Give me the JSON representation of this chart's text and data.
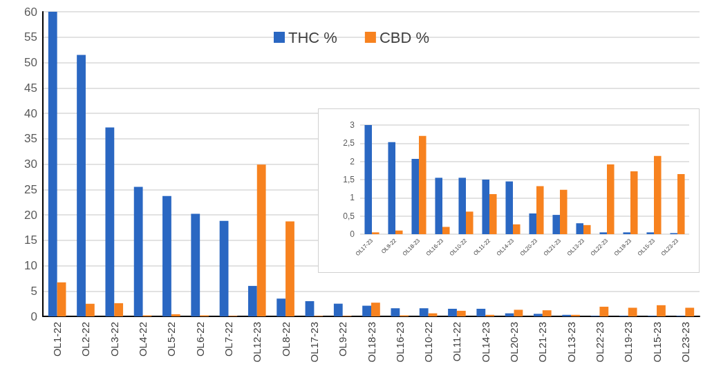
{
  "chart_data": [
    {
      "type": "bar",
      "categories": [
        "OL1-22",
        "OL2-22",
        "OL3-22",
        "OL4-22",
        "OL5-22",
        "OL6-22",
        "OL7-22",
        "OL12-23",
        "OL8-22",
        "OL17-23",
        "OL9-22",
        "OL18-23",
        "OL16-23",
        "OL10-22",
        "OL11-22",
        "OL14-23",
        "OL20-23",
        "OL21-23",
        "OL13-23",
        "OL22-23",
        "OL19-23",
        "OL15-23",
        "OL23-23"
      ],
      "series": [
        {
          "name": "THC %",
          "color": "#2a67c2",
          "values": [
            60,
            51.5,
            37.2,
            25.5,
            23.7,
            20.2,
            18.8,
            6.0,
            3.5,
            3.0,
            2.5,
            2.1,
            1.6,
            1.6,
            1.5,
            1.5,
            0.6,
            0.5,
            0.3,
            0.1,
            0.1,
            0.1,
            0.1
          ]
        },
        {
          "name": "CBD %",
          "color": "#f7821f",
          "values": [
            6.7,
            2.5,
            2.6,
            0.2,
            0.4,
            0.2,
            0.1,
            29.9,
            18.7,
            0.1,
            0.1,
            2.7,
            0.2,
            0.6,
            1.1,
            0.3,
            1.3,
            1.2,
            0.3,
            1.9,
            1.7,
            2.2,
            1.7
          ]
        }
      ],
      "ylim": [
        0,
        60
      ],
      "yticks": [
        0,
        5,
        10,
        15,
        20,
        25,
        30,
        35,
        40,
        45,
        50,
        55,
        60
      ],
      "grid": "y",
      "legend": "top"
    },
    {
      "type": "bar",
      "categories": [
        "OL17-23",
        "OL9-22",
        "OL18-23",
        "OL16-23",
        "OL10-22",
        "OL11-22",
        "OL14-23",
        "OL20-23",
        "OL21-23",
        "OL13-23",
        "OL22-23",
        "OL19-23",
        "OL15-23",
        "OL23-23"
      ],
      "series": [
        {
          "color": "#2a67c2",
          "values": [
            3.0,
            2.53,
            2.07,
            1.55,
            1.55,
            1.5,
            1.45,
            0.57,
            0.53,
            0.3,
            0.05,
            0.05,
            0.05,
            0.03
          ]
        },
        {
          "color": "#f7821f",
          "values": [
            0.05,
            0.1,
            2.7,
            0.2,
            0.62,
            1.1,
            0.27,
            1.32,
            1.22,
            0.25,
            1.92,
            1.73,
            2.15,
            1.65
          ]
        }
      ],
      "ylim": [
        0,
        3
      ],
      "yticks": [
        0,
        {
          "value": 0.5,
          "label": "0,5"
        },
        1,
        {
          "value": 1.5,
          "label": "1,5"
        },
        2,
        {
          "value": 2.5,
          "label": "2,5"
        },
        3
      ],
      "grid": "y"
    }
  ]
}
